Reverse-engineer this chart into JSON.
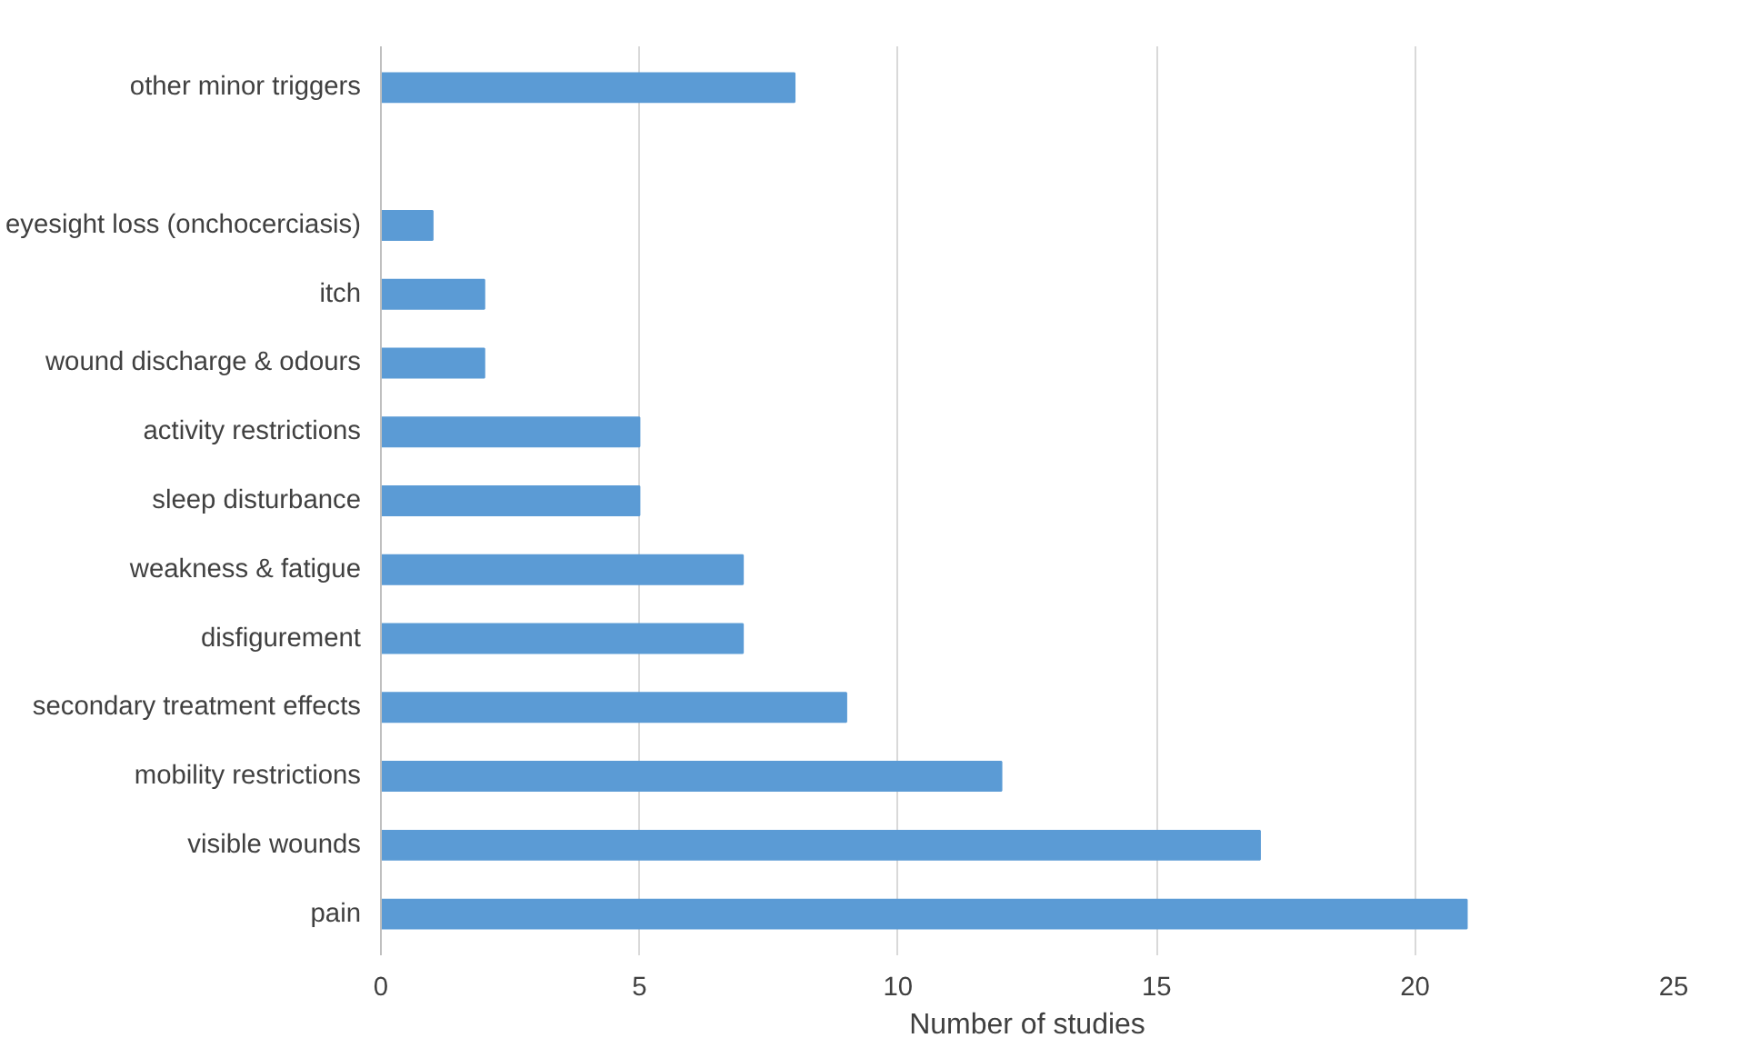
{
  "chart_data": {
    "type": "bar",
    "orientation": "horizontal",
    "xlabel": "Number of studies",
    "categories": [
      "other minor triggers",
      null,
      "eyesight loss (onchocerciasis)",
      "itch",
      "wound discharge & odours",
      "activity restrictions",
      "sleep disturbance",
      "weakness & fatigue",
      "disfigurement",
      "secondary treatment effects",
      "mobility restrictions",
      "visible wounds",
      "pain"
    ],
    "values": [
      8,
      null,
      1,
      2,
      2,
      5,
      5,
      7,
      7,
      9,
      12,
      17,
      21
    ],
    "color": "#5b9bd5",
    "xlim": [
      0,
      25
    ],
    "xticks": [
      0,
      5,
      10,
      15,
      20,
      25
    ],
    "grid": "x"
  }
}
